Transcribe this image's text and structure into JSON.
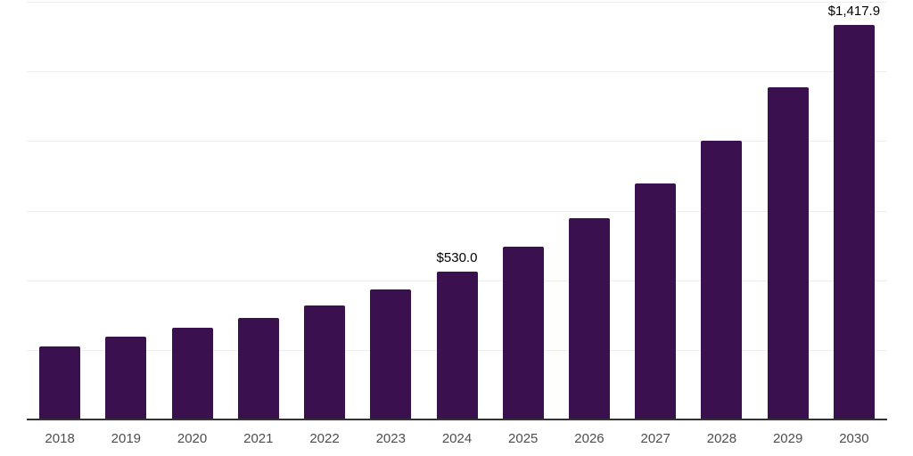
{
  "chart_data": {
    "type": "bar",
    "title": "",
    "xlabel": "",
    "ylabel": "",
    "categories": [
      "2018",
      "2019",
      "2020",
      "2021",
      "2022",
      "2023",
      "2024",
      "2025",
      "2026",
      "2027",
      "2028",
      "2029",
      "2030"
    ],
    "values": [
      262,
      298,
      329,
      364,
      408,
      468,
      530.0,
      620,
      723,
      847,
      1002,
      1192,
      1417.9
    ],
    "bar_labels": [
      "",
      "",
      "",
      "",
      "",
      "",
      "$530.0",
      "",
      "",
      "",
      "",
      "",
      "$1,417.9"
    ],
    "ylim": [
      0,
      1500
    ],
    "gridline_step": 250,
    "grid": true,
    "legend": "none",
    "colors": {
      "bar": "#3a104f",
      "gridline": "#ededed",
      "axis": "#333333",
      "tick_label": "#4d4d4d",
      "data_label": "#000000",
      "background": "#ffffff"
    }
  }
}
